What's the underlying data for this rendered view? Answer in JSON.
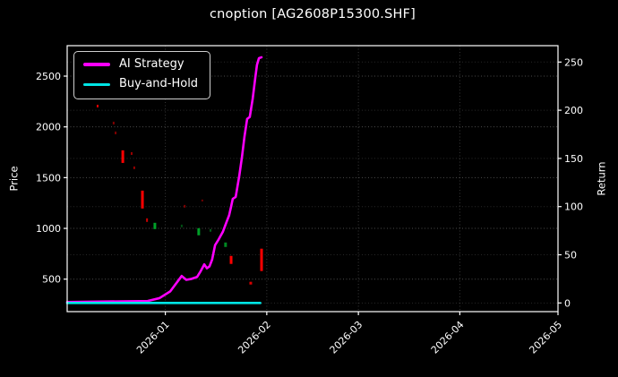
{
  "title": "cnoption [AG2608P15300.SHF]",
  "legend": {
    "items": [
      {
        "label": "AI Strategy",
        "color": "#ff00ff"
      },
      {
        "label": "Buy-and-Hold",
        "color": "#00e5e5"
      }
    ]
  },
  "chart_data": {
    "type": "line",
    "title": "cnoption [AG2608P15300.SHF]",
    "background": "#000000",
    "foreground": "#ffffff",
    "grid": "dotted",
    "legend_position": "upper left",
    "x_axis": {
      "unit": "days since 2025-12-02",
      "min": 0,
      "max": 150,
      "ticks": [
        {
          "d": 30,
          "label": "2026-01"
        },
        {
          "d": 61,
          "label": "2026-02"
        },
        {
          "d": 89,
          "label": "2026-03"
        },
        {
          "d": 120,
          "label": "2026-04"
        },
        {
          "d": 150,
          "label": "2026-05"
        }
      ]
    },
    "price_axis": {
      "label": "Price",
      "min": 180,
      "max": 2800,
      "ticks": [
        500,
        1000,
        1500,
        2000,
        2500
      ]
    },
    "return_axis": {
      "label": "Return",
      "min": -9,
      "max": 267,
      "ticks": [
        0,
        50,
        100,
        150,
        200,
        250
      ]
    },
    "colors": {
      "candle_up": "#00a028",
      "candle_down": "#ff0000"
    },
    "series": [
      {
        "name": "AI Strategy",
        "axis": "return",
        "color": "#ff00ff",
        "points": [
          [
            0,
            1
          ],
          [
            24.6,
            2
          ],
          [
            28.2,
            5
          ],
          [
            31.5,
            12
          ],
          [
            35,
            28
          ],
          [
            36.4,
            24
          ],
          [
            38,
            25
          ],
          [
            39.7,
            27
          ],
          [
            40.8,
            33
          ],
          [
            41.9,
            40
          ],
          [
            42.7,
            36
          ],
          [
            43.5,
            38
          ],
          [
            44.3,
            45
          ],
          [
            45.2,
            60
          ],
          [
            46.3,
            66
          ],
          [
            47.6,
            74
          ],
          [
            48.7,
            84
          ],
          [
            49.5,
            91
          ],
          [
            50.1,
            100
          ],
          [
            50.6,
            108
          ],
          [
            51.5,
            110
          ],
          [
            52.6,
            132
          ],
          [
            53.4,
            151
          ],
          [
            54.2,
            173
          ],
          [
            55,
            191
          ],
          [
            55.8,
            193
          ],
          [
            56.7,
            212
          ],
          [
            57.5,
            234
          ],
          [
            58,
            247
          ],
          [
            58.6,
            254
          ],
          [
            59.4,
            255
          ]
        ]
      },
      {
        "name": "Buy-and-Hold",
        "axis": "return",
        "color": "#00e5e5",
        "points": [
          [
            0,
            0
          ],
          [
            59,
            0
          ]
        ]
      }
    ],
    "candles": [
      {
        "d": 9.3,
        "high": 2218,
        "low": 2192,
        "dir": "down",
        "alpha": 0.9,
        "w": 2
      },
      {
        "d": 14.2,
        "high": 2051,
        "low": 2024,
        "dir": "down",
        "alpha": 0.5,
        "w": 2
      },
      {
        "d": 14.8,
        "high": 1954,
        "low": 1927,
        "dir": "down",
        "alpha": 0.5,
        "w": 2
      },
      {
        "d": 17,
        "high": 1769,
        "low": 1645,
        "dir": "down",
        "alpha": 1,
        "w": 3
      },
      {
        "d": 19.7,
        "high": 1751,
        "low": 1724,
        "dir": "down",
        "alpha": 0.6,
        "w": 2
      },
      {
        "d": 20.5,
        "high": 1610,
        "low": 1584,
        "dir": "down",
        "alpha": 0.6,
        "w": 2
      },
      {
        "d": 23,
        "high": 1372,
        "low": 1196,
        "dir": "down",
        "alpha": 1,
        "w": 3
      },
      {
        "d": 24.4,
        "high": 1099,
        "low": 1064,
        "dir": "down",
        "alpha": 0.8,
        "w": 2
      },
      {
        "d": 26.8,
        "high": 1055,
        "low": 993,
        "dir": "up",
        "alpha": 1,
        "w": 3
      },
      {
        "d": 35,
        "high": 1037,
        "low": 1011,
        "dir": "up",
        "alpha": 0.5,
        "w": 2
      },
      {
        "d": 35.9,
        "high": 1231,
        "low": 1205,
        "dir": "down",
        "alpha": 0.5,
        "w": 2
      },
      {
        "d": 40.2,
        "high": 1002,
        "low": 932,
        "dir": "up",
        "alpha": 1,
        "w": 3
      },
      {
        "d": 41.3,
        "high": 1284,
        "low": 1266,
        "dir": "down",
        "alpha": 0.45,
        "w": 2
      },
      {
        "d": 43.8,
        "high": 993,
        "low": 967,
        "dir": "up",
        "alpha": 0.6,
        "w": 2
      },
      {
        "d": 48.4,
        "high": 861,
        "low": 817,
        "dir": "up",
        "alpha": 0.85,
        "w": 3
      },
      {
        "d": 50.1,
        "high": 729,
        "low": 650,
        "dir": "down",
        "alpha": 1,
        "w": 3
      },
      {
        "d": 56.1,
        "high": 474,
        "low": 447,
        "dir": "down",
        "alpha": 0.85,
        "w": 3
      },
      {
        "d": 59.4,
        "high": 800,
        "low": 580,
        "dir": "down",
        "alpha": 1,
        "w": 3
      }
    ]
  }
}
